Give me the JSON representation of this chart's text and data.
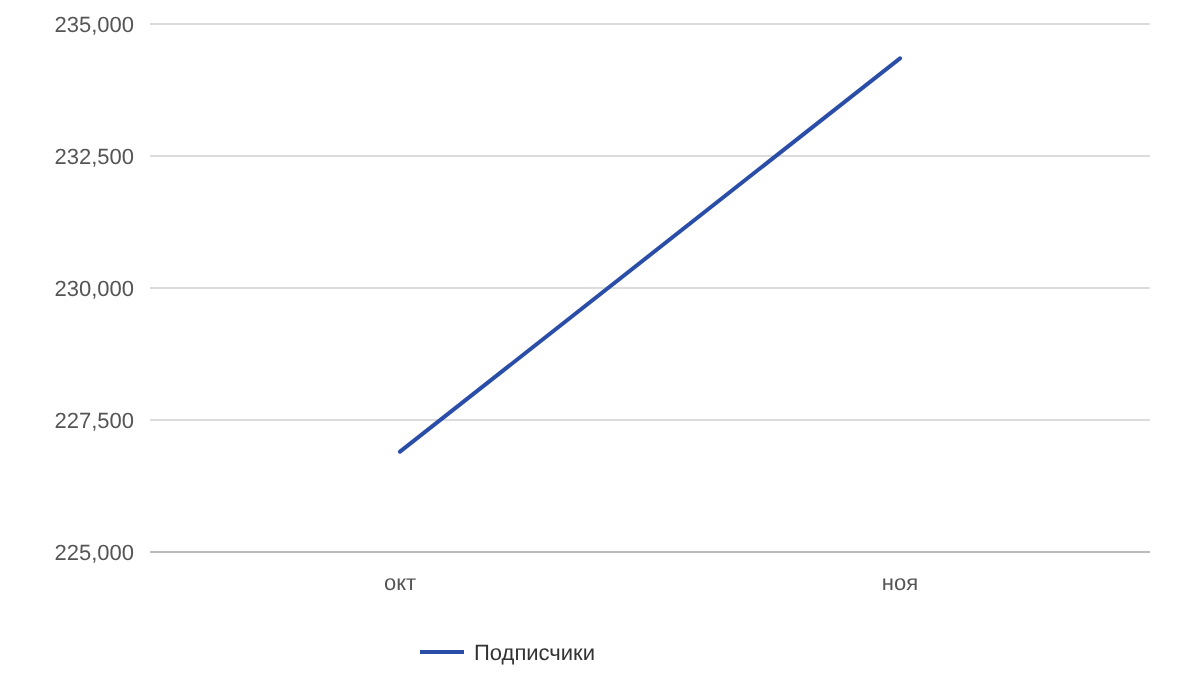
{
  "chart_data": {
    "type": "line",
    "categories": [
      "окт",
      "ноя"
    ],
    "series": [
      {
        "name": "Подписчики",
        "color": "#2a4ea8",
        "values": [
          226900,
          234350
        ]
      }
    ],
    "ylim": [
      225000,
      235000
    ],
    "yticks": [
      {
        "value": 225000,
        "label": "225,000"
      },
      {
        "value": 227500,
        "label": "227,500"
      },
      {
        "value": 230000,
        "label": "230,000"
      },
      {
        "value": 232500,
        "label": "232,500"
      },
      {
        "value": 235000,
        "label": "235,000"
      }
    ],
    "grid": "y",
    "legend": "bottom",
    "marker": "none",
    "line_style": "solid"
  }
}
